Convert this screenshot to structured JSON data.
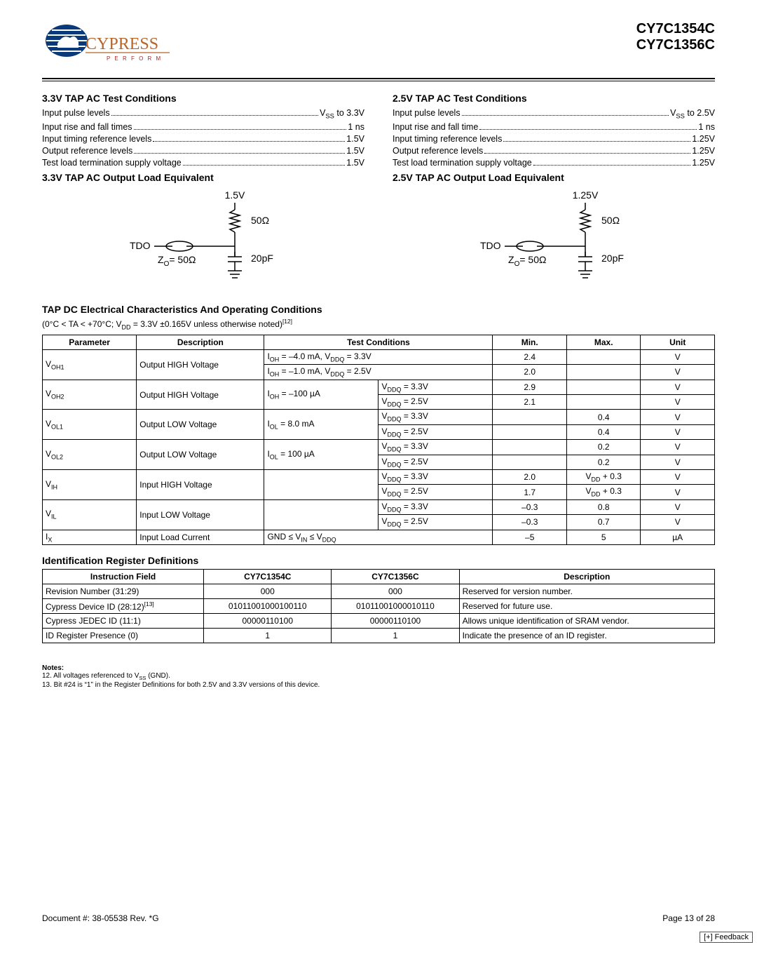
{
  "header": {
    "part1": "CY7C1354C",
    "part2": "CY7C1356C",
    "logo_text": "CYPRESS",
    "logo_sub": "P E R F O R M",
    "logo_colors": {
      "globe": "#0a3a7a",
      "text": "#b8652a",
      "sub": "#b02a2a"
    }
  },
  "tap33": {
    "title": "3.3V TAP AC Test Conditions",
    "rows": [
      {
        "label": "Input pulse levels",
        "value_html": " V<sub>SS</sub> to 3.3V"
      },
      {
        "label": "Input rise and fall times",
        "value_html": " 1 ns"
      },
      {
        "label": "Input timing reference levels",
        "value_html": "1.5V"
      },
      {
        "label": "Output reference levels",
        "value_html": "1.5V"
      },
      {
        "label": "Test load termination supply voltage",
        "value_html": "1.5V"
      }
    ]
  },
  "tap25": {
    "title": "2.5V TAP AC Test Conditions",
    "rows": [
      {
        "label": "Input pulse levels",
        "value_html": "V<sub>SS</sub> to 2.5V"
      },
      {
        "label": "Input rise and fall time",
        "value_html": "1 ns"
      },
      {
        "label": "Input timing reference levels",
        "value_html": " 1.25V"
      },
      {
        "label": "Output reference levels",
        "value_html": " 1.25V"
      },
      {
        "label": "Test load termination supply voltage",
        "value_html": " 1.25V"
      }
    ]
  },
  "load33": {
    "title": "3.3V TAP AC Output Load Equivalent",
    "supply": "1.5V",
    "r": "50Ω",
    "cap": "20pF",
    "z": "Z",
    "zsub": "O",
    "zval": "= 50Ω",
    "tdo": "TDO"
  },
  "load25": {
    "title": "2.5V TAP AC Output Load Equivalent",
    "supply": "1.25V",
    "r": "50Ω",
    "cap": "20pF",
    "z": "Z",
    "zsub": "O",
    "zval": "= 50Ω",
    "tdo": "TDO"
  },
  "dc": {
    "title": "TAP DC Electrical Characteristics And Operating Conditions",
    "cond_html": "(0°C < TA < +70°C; V<sub>DD</sub> = 3.3V ±0.165V unless otherwise noted)<sup>[12]</sup>",
    "headers": [
      "Parameter",
      "Description",
      "Test Conditions",
      "Min.",
      "Max.",
      "Unit"
    ],
    "rows": [
      {
        "param": "V<sub>OH1</sub>",
        "desc": "Output HIGH Voltage",
        "tc": "I<sub>OH</sub> = –4.0 mA, V<sub>DDQ</sub> = 3.3V",
        "tc_colspan": 2,
        "min": "2.4",
        "max": "",
        "unit": "V",
        "row1": true
      },
      {
        "param": "",
        "desc": "",
        "tc": "I<sub>OH</sub> = –1.0 mA, V<sub>DDQ</sub> = 2.5V",
        "tc_colspan": 2,
        "min": "2.0",
        "max": "",
        "unit": "V"
      },
      {
        "param": "V<sub>OH2</sub>",
        "desc": "Output HIGH Voltage",
        "tc": "I<sub>OH</sub> = –100 µA",
        "tc2": "V<sub>DDQ</sub> = 3.3V",
        "min": "2.9",
        "max": "",
        "unit": "V",
        "row1": true
      },
      {
        "param": "",
        "desc": "",
        "tc": "",
        "tc2": "V<sub>DDQ</sub> = 2.5V",
        "min": "2.1",
        "max": "",
        "unit": "V"
      },
      {
        "param": "V<sub>OL1</sub>",
        "desc": "Output LOW Voltage",
        "tc": "I<sub>OL</sub> = 8.0 mA",
        "tc2": "V<sub>DDQ</sub> = 3.3V",
        "min": "",
        "max": "0.4",
        "unit": "V",
        "row1": true
      },
      {
        "param": "",
        "desc": "",
        "tc": "",
        "tc2": "V<sub>DDQ</sub> = 2.5V",
        "min": "",
        "max": "0.4",
        "unit": "V"
      },
      {
        "param": "V<sub>OL2</sub>",
        "desc": "Output LOW Voltage",
        "tc": "I<sub>OL</sub> = 100 µA",
        "tc2": "V<sub>DDQ</sub> = 3.3V",
        "min": "",
        "max": "0.2",
        "unit": "V",
        "row1": true
      },
      {
        "param": "",
        "desc": "",
        "tc": "",
        "tc2": "V<sub>DDQ</sub> = 2.5V",
        "min": "",
        "max": "0.2",
        "unit": "V"
      },
      {
        "param": "V<sub>IH</sub>",
        "desc": "Input HIGH Voltage",
        "tc": "",
        "tc2": "V<sub>DDQ</sub> = 3.3V",
        "min": "2.0",
        "max": "V<sub>DD</sub> + 0.3",
        "unit": "V",
        "row1": true
      },
      {
        "param": "",
        "desc": "",
        "tc": "",
        "tc2": "V<sub>DDQ</sub> = 2.5V",
        "min": "1.7",
        "max": "V<sub>DD</sub> + 0.3",
        "unit": "V"
      },
      {
        "param": "V<sub>IL</sub>",
        "desc": "Input LOW Voltage",
        "tc": "",
        "tc2": "V<sub>DDQ</sub> = 3.3V",
        "min": "–0.3",
        "max": "0.8",
        "unit": "V",
        "row1": true
      },
      {
        "param": "",
        "desc": "",
        "tc": "",
        "tc2": "V<sub>DDQ</sub> = 2.5V",
        "min": "–0.3",
        "max": "0.7",
        "unit": "V"
      },
      {
        "param": "I<sub>X</sub>",
        "desc": "Input Load Current",
        "tc": "GND ≤ V<sub>IN</sub> ≤ V<sub>DDQ</sub>",
        "tc_colspan": 2,
        "min": "–5",
        "max": "5",
        "unit": "µA",
        "single": true
      }
    ],
    "col_widths": [
      "14%",
      "19%",
      "17%",
      "17%",
      "11%",
      "11%",
      "11%"
    ]
  },
  "idreg": {
    "title": "Identification Register Definitions",
    "headers": [
      "Instruction Field",
      "CY7C1354C",
      "CY7C1356C",
      "Description"
    ],
    "rows": [
      [
        "Revision Number (31:29)",
        "000",
        "000",
        "Reserved for version number."
      ],
      [
        "Cypress Device ID (28:12)<sup>[13]</sup>",
        "01011001000100110",
        "01011001000010110",
        "Reserved for future use."
      ],
      [
        "Cypress JEDEC ID (11:1)",
        "00000110100",
        "00000110100",
        "Allows unique identification of SRAM vendor."
      ],
      [
        "ID Register Presence (0)",
        "1",
        "1",
        "Indicate the presence of an ID register."
      ]
    ],
    "col_widths": [
      "24%",
      "19%",
      "19%",
      "38%"
    ]
  },
  "notes": {
    "title": "Notes:",
    "n12": "12. All voltages referenced to V<sub>SS</sub> (GND).",
    "n13": "13. Bit #24 is “1” in the Register Definitions for both 2.5V and 3.3V versions of this device."
  },
  "footer": {
    "doc": "Document #: 38-05538 Rev. *G",
    "page": "Page 13 of 28",
    "feedback": "[+] Feedback"
  }
}
